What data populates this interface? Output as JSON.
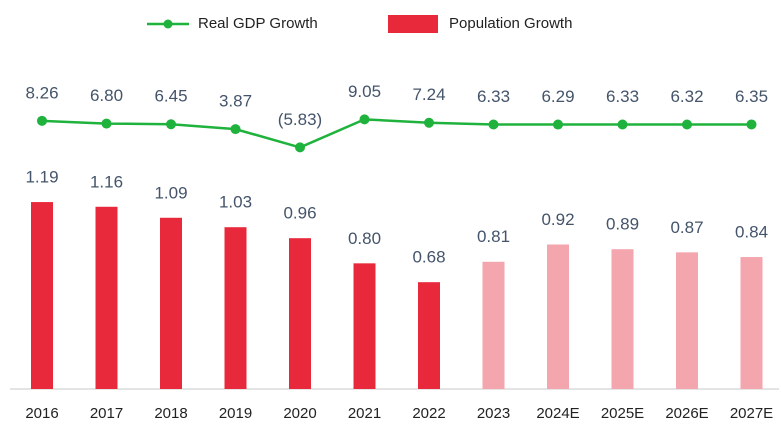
{
  "chart_data": {
    "type": "bar",
    "categories": [
      "2016",
      "2017",
      "2018",
      "2019",
      "2020",
      "2021",
      "2022",
      "2023",
      "2024E",
      "2025E",
      "2026E",
      "2027E"
    ],
    "series": [
      {
        "name": "Real GDP Growth",
        "type": "line",
        "axis": "y2",
        "color": "#1fb23c",
        "values": [
          8.26,
          6.8,
          6.45,
          3.87,
          -5.83,
          9.05,
          7.24,
          6.33,
          6.29,
          6.33,
          6.32,
          6.35
        ],
        "value_labels": [
          "8.26",
          "6.80",
          "6.45",
          "3.87",
          "(5.83)",
          "9.05",
          "7.24",
          "6.33",
          "6.29",
          "6.33",
          "6.32",
          "6.35"
        ]
      },
      {
        "name": "Population Growth",
        "type": "bar",
        "color": "#e8283b",
        "colors": [
          "#e8283b",
          "#e8283b",
          "#e8283b",
          "#e8283b",
          "#e8283b",
          "#e8283b",
          "#e8283b",
          "#f4a6ae",
          "#f4a6ae",
          "#f4a6ae",
          "#f4a6ae",
          "#f4a6ae"
        ],
        "values": [
          1.19,
          1.16,
          1.09,
          1.03,
          0.96,
          0.8,
          0.68,
          0.81,
          0.92,
          0.89,
          0.87,
          0.84
        ],
        "value_labels": [
          "1.19",
          "1.16",
          "1.09",
          "1.03",
          "0.96",
          "0.80",
          "0.68",
          "0.81",
          "0.92",
          "0.89",
          "0.87",
          "0.84"
        ]
      }
    ],
    "ylim": [
      0,
      2.4
    ],
    "y2lim": [
      -134,
      66
    ],
    "legend": "top"
  }
}
